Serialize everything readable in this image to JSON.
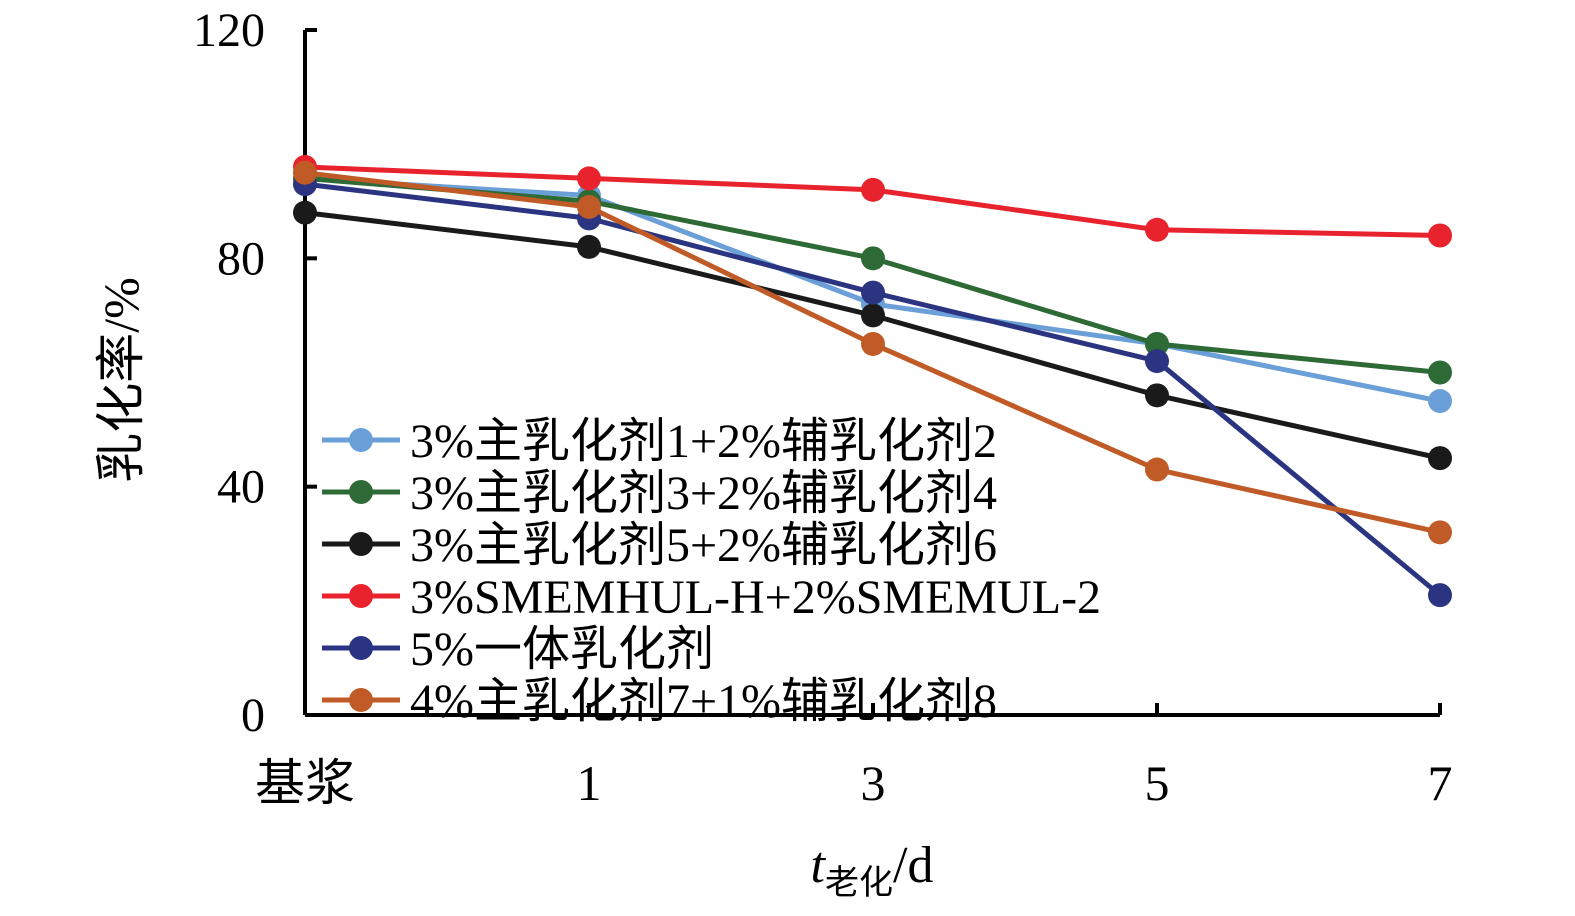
{
  "chart_data": {
    "type": "line",
    "categories": [
      "基浆",
      "1",
      "3",
      "5",
      "7"
    ],
    "ylabel": "乳化率/%",
    "xlabel_main": "t",
    "xlabel_sub": "老化",
    "xlabel_unit": "/d",
    "ylim": [
      0,
      120
    ],
    "yticks": [
      0,
      40,
      80,
      120
    ],
    "grid": false,
    "legend_position": "left-bottom",
    "series": [
      {
        "name": "3%主乳化剂1+2%辅乳化剂2",
        "color": "#6A9FD8",
        "values": [
          94,
          91,
          72,
          65,
          55
        ]
      },
      {
        "name": "3%主乳化剂3+2%辅乳化剂4",
        "color": "#2E6A35",
        "values": [
          94,
          90,
          80,
          65,
          60
        ]
      },
      {
        "name": "3%主乳化剂5+2%辅乳化剂6",
        "color": "#1A1A1A",
        "values": [
          88,
          82,
          70,
          56,
          45
        ]
      },
      {
        "name": "3%SMEMHUL-H+2%SMEMUL-2",
        "color": "#E8232D",
        "values": [
          96,
          94,
          92,
          85,
          84
        ]
      },
      {
        "name": "5%一体乳化剂",
        "color": "#2B3480",
        "values": [
          93,
          87,
          74,
          62,
          21
        ]
      },
      {
        "name": "4%主乳化剂7+1%辅乳化剂8",
        "color": "#C05B27",
        "values": [
          95,
          89,
          65,
          43,
          32
        ]
      }
    ]
  }
}
